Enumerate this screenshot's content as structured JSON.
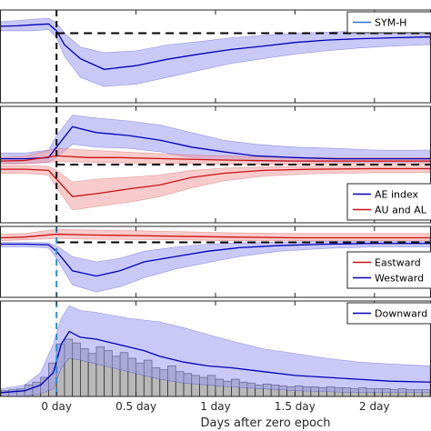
{
  "colors": {
    "blue": "#0000b8",
    "blue_band": "#9d9df2",
    "red": "#cc1111",
    "red_band": "#f0a0a0",
    "bar_fill": "#b8b8b8",
    "bar_edge": "#303030",
    "zero_epoch_line": "#000000",
    "cyan_line": "#2a8fd6",
    "hline": "#000000"
  },
  "chart_data": {
    "type": "line",
    "xlabel": "Days after zero epoch",
    "x_unit": "day",
    "xlim": [
      -0.35,
      2.35
    ],
    "xticks": [
      {
        "value": 0,
        "label": "0 day"
      },
      {
        "value": 0.5,
        "label": "0.5 day"
      },
      {
        "value": 1,
        "label": "1 day"
      },
      {
        "value": 1.5,
        "label": "1.5 day"
      },
      {
        "value": 2,
        "label": "2 day"
      }
    ],
    "zero_epoch": 0,
    "panels": [
      {
        "id": "sym-h",
        "ylim": [
          -1,
          1
        ],
        "hline": 0.5,
        "legend": [
          {
            "label": "SYM-H",
            "color": "#1f77d4"
          }
        ],
        "series": [
          {
            "name": "SYM-H",
            "color": "#0000b8",
            "band_color": "#9d9df2",
            "x": [
              -0.35,
              -0.25,
              -0.15,
              -0.05,
              0.0,
              0.05,
              0.15,
              0.3,
              0.5,
              0.7,
              0.9,
              1.1,
              1.3,
              1.5,
              1.7,
              1.9,
              2.1,
              2.35
            ],
            "y": [
              0.65,
              0.66,
              0.68,
              0.7,
              0.55,
              0.25,
              -0.05,
              -0.28,
              -0.2,
              -0.06,
              0.05,
              0.15,
              0.22,
              0.3,
              0.35,
              0.38,
              0.4,
              0.42
            ],
            "upper": [
              0.75,
              0.77,
              0.8,
              0.82,
              0.72,
              0.5,
              0.2,
              0.08,
              0.12,
              0.25,
              0.32,
              0.4,
              0.45,
              0.5,
              0.52,
              0.55,
              0.55,
              0.56
            ],
            "lower": [
              0.55,
              0.55,
              0.55,
              0.58,
              0.4,
              0.0,
              -0.45,
              -0.65,
              -0.6,
              -0.45,
              -0.3,
              -0.15,
              -0.05,
              0.05,
              0.12,
              0.18,
              0.22,
              0.25
            ]
          }
        ]
      },
      {
        "id": "ae",
        "ylim": [
          -1,
          1
        ],
        "hline": 0,
        "legend": [
          {
            "label": "AE index",
            "color": "#0000b8"
          },
          {
            "label": "AU and AL",
            "color": "#cc1111"
          }
        ],
        "series": [
          {
            "name": "AE index",
            "color": "#0000b8",
            "band_color": "#9d9df2",
            "x": [
              -0.35,
              -0.2,
              -0.05,
              0.0,
              0.1,
              0.25,
              0.45,
              0.65,
              0.85,
              1.05,
              1.25,
              1.5,
              1.75,
              2.0,
              2.35
            ],
            "y": [
              0.1,
              0.1,
              0.12,
              0.3,
              0.65,
              0.55,
              0.5,
              0.42,
              0.3,
              0.22,
              0.15,
              0.12,
              0.1,
              0.1,
              0.1
            ],
            "upper": [
              0.2,
              0.2,
              0.25,
              0.5,
              0.85,
              0.8,
              0.75,
              0.68,
              0.55,
              0.42,
              0.35,
              0.3,
              0.28,
              0.25,
              0.25
            ],
            "lower": [
              0.02,
              0.02,
              0.04,
              0.12,
              0.35,
              0.3,
              0.28,
              0.22,
              0.12,
              0.08,
              0.05,
              0.05,
              0.04,
              0.04,
              0.04
            ]
          },
          {
            "name": "AU",
            "color": "#cc1111",
            "band_color": "#f0a0a0",
            "x": [
              -0.35,
              -0.2,
              0.0,
              0.2,
              0.4,
              0.7,
              1.0,
              1.5,
              2.0,
              2.35
            ],
            "y": [
              0.06,
              0.07,
              0.15,
              0.12,
              0.12,
              0.1,
              0.08,
              0.06,
              0.06,
              0.06
            ],
            "upper": [
              0.12,
              0.14,
              0.28,
              0.25,
              0.22,
              0.18,
              0.15,
              0.12,
              0.12,
              0.12
            ],
            "lower": [
              0.0,
              0.01,
              0.05,
              0.04,
              0.03,
              0.02,
              0.01,
              0.0,
              0.0,
              0.0
            ]
          },
          {
            "name": "AL",
            "color": "#cc1111",
            "band_color": "#f0a0a0",
            "x": [
              -0.35,
              -0.2,
              -0.05,
              0.0,
              0.1,
              0.25,
              0.45,
              0.65,
              0.85,
              1.05,
              1.3,
              1.6,
              2.0,
              2.35
            ],
            "y": [
              -0.08,
              -0.08,
              -0.1,
              -0.25,
              -0.55,
              -0.5,
              -0.42,
              -0.35,
              -0.22,
              -0.15,
              -0.1,
              -0.08,
              -0.07,
              -0.07
            ],
            "upper": [
              -0.02,
              -0.02,
              -0.03,
              -0.1,
              -0.3,
              -0.25,
              -0.22,
              -0.18,
              -0.1,
              -0.06,
              -0.04,
              -0.03,
              -0.03,
              -0.03
            ],
            "lower": [
              -0.15,
              -0.15,
              -0.18,
              -0.4,
              -0.78,
              -0.72,
              -0.65,
              -0.55,
              -0.4,
              -0.28,
              -0.2,
              -0.16,
              -0.14,
              -0.14
            ]
          }
        ]
      },
      {
        "id": "electrojet",
        "ylim": [
          -1,
          1
        ],
        "hline": 0.55,
        "legend": [
          {
            "label": "Eastward",
            "color": "#cc1111"
          },
          {
            "label": "Westward",
            "color": "#0000b8"
          }
        ],
        "series": [
          {
            "name": "Eastward",
            "color": "#cc1111",
            "band_color": "#f0a0a0",
            "x": [
              -0.35,
              -0.2,
              0.0,
              0.2,
              0.5,
              0.8,
              1.1,
              1.5,
              2.0,
              2.35
            ],
            "y": [
              0.68,
              0.7,
              0.78,
              0.76,
              0.74,
              0.72,
              0.7,
              0.68,
              0.68,
              0.68
            ],
            "upper": [
              0.78,
              0.8,
              0.92,
              0.9,
              0.88,
              0.85,
              0.82,
              0.8,
              0.8,
              0.8
            ],
            "lower": [
              0.6,
              0.62,
              0.66,
              0.64,
              0.63,
              0.62,
              0.6,
              0.6,
              0.6,
              0.6
            ]
          },
          {
            "name": "Westward",
            "color": "#0000b8",
            "band_color": "#9d9df2",
            "x": [
              -0.35,
              -0.2,
              -0.05,
              0.0,
              0.1,
              0.25,
              0.4,
              0.55,
              0.75,
              0.95,
              1.15,
              1.4,
              1.7,
              2.0,
              2.35
            ],
            "y": [
              0.5,
              0.5,
              0.48,
              0.3,
              -0.25,
              -0.4,
              -0.25,
              0.0,
              0.15,
              0.3,
              0.4,
              0.46,
              0.5,
              0.52,
              0.52
            ],
            "upper": [
              0.55,
              0.55,
              0.54,
              0.45,
              0.15,
              0.0,
              0.1,
              0.3,
              0.42,
              0.5,
              0.54,
              0.56,
              0.58,
              0.58,
              0.58
            ],
            "lower": [
              0.42,
              0.42,
              0.4,
              0.1,
              -0.65,
              -0.85,
              -0.7,
              -0.45,
              -0.2,
              -0.02,
              0.15,
              0.3,
              0.38,
              0.42,
              0.42
            ]
          }
        ]
      },
      {
        "id": "downward",
        "ylim": [
          0,
          1
        ],
        "hline": null,
        "legend": [
          {
            "label": "Downward",
            "color": "#0000b8"
          }
        ],
        "bars": {
          "width": 0.05,
          "x": [
            -0.325,
            -0.275,
            -0.225,
            -0.175,
            -0.125,
            -0.075,
            -0.025,
            0.025,
            0.075,
            0.125,
            0.175,
            0.225,
            0.275,
            0.325,
            0.375,
            0.425,
            0.475,
            0.525,
            0.575,
            0.625,
            0.675,
            0.725,
            0.775,
            0.825,
            0.875,
            0.925,
            0.975,
            1.025,
            1.075,
            1.125,
            1.175,
            1.225,
            1.275,
            1.325,
            1.375,
            1.425,
            1.475,
            1.525,
            1.575,
            1.625,
            1.675,
            1.725,
            1.775,
            1.825,
            1.875,
            1.925,
            1.975,
            2.025,
            2.075,
            2.125,
            2.175,
            2.225,
            2.275,
            2.325
          ],
          "values": [
            0.06,
            0.07,
            0.08,
            0.12,
            0.15,
            0.2,
            0.35,
            0.55,
            0.6,
            0.56,
            0.5,
            0.45,
            0.52,
            0.48,
            0.42,
            0.46,
            0.4,
            0.35,
            0.38,
            0.3,
            0.28,
            0.32,
            0.26,
            0.24,
            0.22,
            0.2,
            0.22,
            0.18,
            0.16,
            0.18,
            0.15,
            0.14,
            0.12,
            0.13,
            0.12,
            0.11,
            0.1,
            0.11,
            0.1,
            0.1,
            0.09,
            0.1,
            0.09,
            0.09,
            0.08,
            0.09,
            0.08,
            0.08,
            0.08,
            0.07,
            0.08,
            0.07,
            0.07,
            0.07
          ]
        },
        "series": [
          {
            "name": "Downward",
            "color": "#0000b8",
            "band_color": "#9d9df2",
            "x": [
              -0.35,
              -0.2,
              -0.1,
              -0.02,
              0.03,
              0.08,
              0.15,
              0.25,
              0.35,
              0.45,
              0.55,
              0.65,
              0.8,
              0.95,
              1.1,
              1.3,
              1.5,
              1.7,
              1.9,
              2.1,
              2.35
            ],
            "y": [
              0.04,
              0.06,
              0.12,
              0.25,
              0.55,
              0.68,
              0.62,
              0.6,
              0.56,
              0.52,
              0.48,
              0.42,
              0.36,
              0.32,
              0.3,
              0.26,
              0.22,
              0.2,
              0.18,
              0.16,
              0.15
            ],
            "upper": [
              0.08,
              0.12,
              0.25,
              0.55,
              0.82,
              0.95,
              0.9,
              0.88,
              0.85,
              0.82,
              0.8,
              0.78,
              0.72,
              0.65,
              0.58,
              0.5,
              0.45,
              0.4,
              0.36,
              0.34,
              0.32
            ],
            "lower": [
              0.0,
              0.0,
              0.03,
              0.08,
              0.3,
              0.4,
              0.38,
              0.34,
              0.3,
              0.26,
              0.22,
              0.18,
              0.14,
              0.12,
              0.1,
              0.08,
              0.06,
              0.05,
              0.04,
              0.04,
              0.04
            ]
          }
        ]
      }
    ]
  }
}
